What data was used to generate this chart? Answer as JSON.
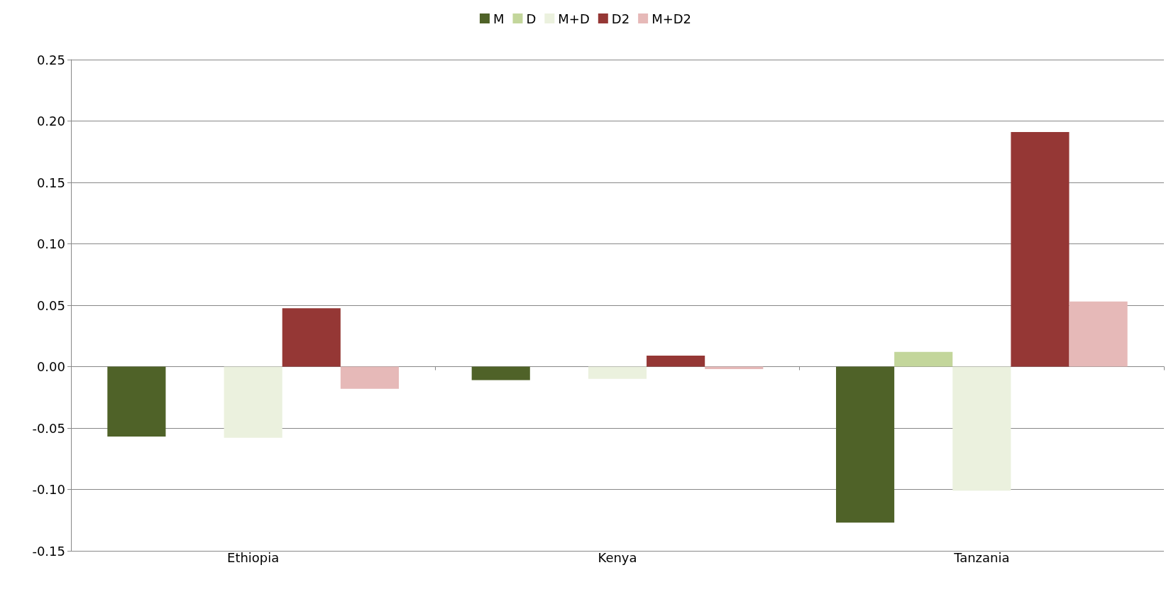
{
  "chart_data": {
    "type": "bar",
    "categories": [
      "Ethiopia",
      "Kenya",
      "Tanzania"
    ],
    "series": [
      {
        "name": "M",
        "color": "#4f6228",
        "values": [
          -0.057,
          -0.011,
          -0.127
        ]
      },
      {
        "name": "D",
        "color": "#c3d69b",
        "values": [
          null,
          null,
          0.012
        ]
      },
      {
        "name": "M+D",
        "color": "#ebf1de",
        "values": [
          -0.058,
          -0.01,
          -0.101
        ]
      },
      {
        "name": "D2",
        "color": "#953735",
        "values": [
          0.0475,
          0.009,
          0.191
        ]
      },
      {
        "name": "M+D2",
        "color": "#e6b9b8",
        "values": [
          -0.018,
          -0.002,
          0.053
        ]
      }
    ],
    "ylim": [
      -0.15,
      0.25
    ],
    "yticks": [
      {
        "value": -0.15,
        "label": "-0.15"
      },
      {
        "value": -0.1,
        "label": "-0.10"
      },
      {
        "value": -0.05,
        "label": "-0.05"
      },
      {
        "value": 0,
        "label": "0.00"
      },
      {
        "value": 0.05,
        "label": "0.05"
      },
      {
        "value": 0.1,
        "label": "0.10"
      },
      {
        "value": 0.15,
        "label": "0.15"
      },
      {
        "value": 0.2,
        "label": "0.20"
      },
      {
        "value": 0.25,
        "label": "0.25"
      }
    ],
    "grid": "y",
    "legend": "top"
  }
}
